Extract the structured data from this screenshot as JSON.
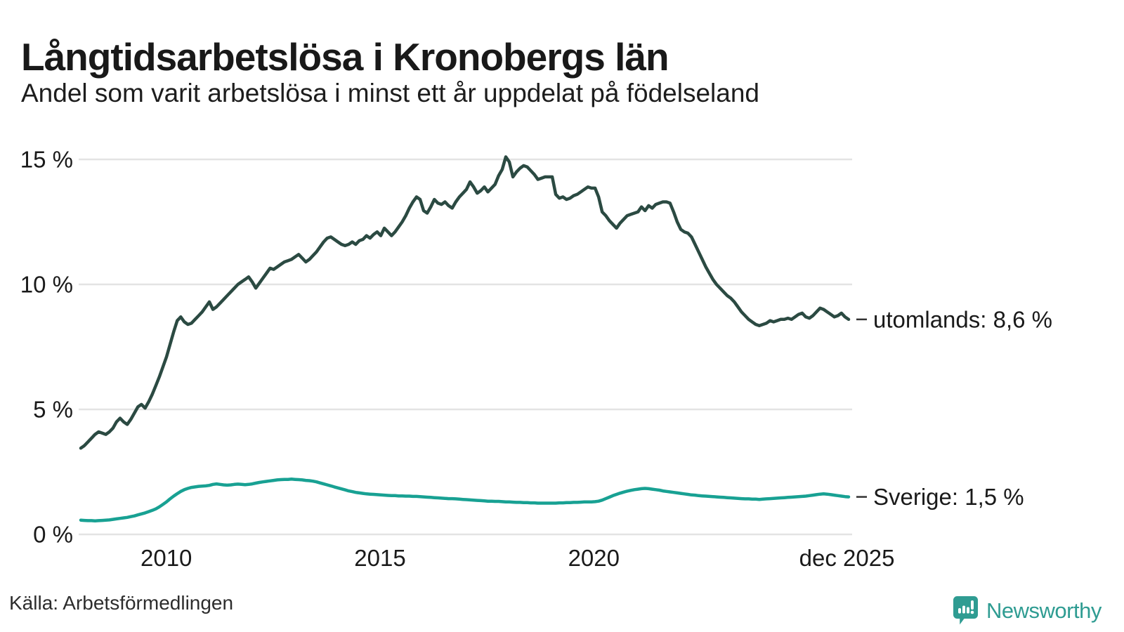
{
  "header": {
    "title": "Långtidsarbetslösa i Kronobergs län",
    "subtitle": "Andel som varit arbetslösa i minst ett år uppdelat på födelseland"
  },
  "chart_data": {
    "type": "line",
    "title": "Långtidsarbetslösa i Kronobergs län",
    "subtitle": "Andel som varit arbetslösa i minst ett år uppdelat på födelseland",
    "x_start": "2008-01",
    "x_end": "2025-12",
    "frequency": "monthly",
    "y_unit": "%",
    "ylim": [
      0,
      16
    ],
    "grid": true,
    "legend_position": "end-of-line",
    "y_ticks": [
      {
        "label": "0 %",
        "value": 0
      },
      {
        "label": "5 %",
        "value": 5
      },
      {
        "label": "10 %",
        "value": 10
      },
      {
        "label": "15 %",
        "value": 15
      }
    ],
    "x_ticks": [
      {
        "label": "2010",
        "year": 2010.0
      },
      {
        "label": "2015",
        "year": 2015.0
      },
      {
        "label": "2020",
        "year": 2020.0
      },
      {
        "label": "dec 2025",
        "year": 2025.92
      }
    ],
    "series": [
      {
        "name": "utomlands",
        "label": "utomlands: 8,6 %",
        "last_value": "8,6 %",
        "color": "#2b4a42",
        "values": [
          3.45,
          3.55,
          3.7,
          3.85,
          4.0,
          4.1,
          4.05,
          4.0,
          4.1,
          4.25,
          4.5,
          4.65,
          4.5,
          4.4,
          4.6,
          4.85,
          5.1,
          5.2,
          5.05,
          5.3,
          5.6,
          5.95,
          6.3,
          6.7,
          7.1,
          7.6,
          8.1,
          8.55,
          8.7,
          8.5,
          8.4,
          8.45,
          8.6,
          8.75,
          8.9,
          9.1,
          9.3,
          9.0,
          9.1,
          9.25,
          9.4,
          9.55,
          9.7,
          9.85,
          10.0,
          10.1,
          10.2,
          10.3,
          10.1,
          9.85,
          10.05,
          10.25,
          10.45,
          10.65,
          10.6,
          10.7,
          10.8,
          10.9,
          10.95,
          11.0,
          11.1,
          11.2,
          11.05,
          10.9,
          11.0,
          11.15,
          11.3,
          11.5,
          11.7,
          11.85,
          11.9,
          11.8,
          11.7,
          11.6,
          11.55,
          11.6,
          11.7,
          11.6,
          11.75,
          11.8,
          11.95,
          11.85,
          12.0,
          12.1,
          11.95,
          12.25,
          12.1,
          11.95,
          12.1,
          12.3,
          12.5,
          12.75,
          13.05,
          13.3,
          13.5,
          13.4,
          12.95,
          12.85,
          13.1,
          13.4,
          13.25,
          13.2,
          13.3,
          13.15,
          13.05,
          13.3,
          13.5,
          13.65,
          13.8,
          14.1,
          13.9,
          13.65,
          13.75,
          13.9,
          13.7,
          13.85,
          14.0,
          14.35,
          14.6,
          15.1,
          14.9,
          14.3,
          14.5,
          14.65,
          14.75,
          14.7,
          14.55,
          14.4,
          14.2,
          14.25,
          14.3,
          14.3,
          14.3,
          13.6,
          13.45,
          13.5,
          13.4,
          13.45,
          13.55,
          13.6,
          13.7,
          13.8,
          13.9,
          13.85,
          13.85,
          13.5,
          12.9,
          12.75,
          12.55,
          12.4,
          12.25,
          12.45,
          12.6,
          12.75,
          12.8,
          12.85,
          12.9,
          13.1,
          12.95,
          13.15,
          13.05,
          13.2,
          13.25,
          13.3,
          13.3,
          13.25,
          12.9,
          12.5,
          12.2,
          12.1,
          12.05,
          11.9,
          11.6,
          11.3,
          11.0,
          10.7,
          10.45,
          10.2,
          10.0,
          9.85,
          9.7,
          9.55,
          9.45,
          9.3,
          9.1,
          8.9,
          8.75,
          8.6,
          8.5,
          8.4,
          8.35,
          8.4,
          8.45,
          8.55,
          8.5,
          8.55,
          8.6,
          8.6,
          8.65,
          8.6,
          8.7,
          8.8,
          8.85,
          8.7,
          8.65,
          8.75,
          8.9,
          9.05,
          9.0,
          8.9,
          8.8,
          8.7,
          8.75,
          8.85,
          8.7,
          8.6
        ]
      },
      {
        "name": "Sverige",
        "label": "Sverige: 1,5 %",
        "last_value": "1,5 %",
        "color": "#18a193",
        "values": [
          0.57,
          0.56,
          0.55,
          0.55,
          0.54,
          0.55,
          0.56,
          0.57,
          0.58,
          0.6,
          0.62,
          0.64,
          0.66,
          0.68,
          0.71,
          0.74,
          0.78,
          0.82,
          0.86,
          0.91,
          0.96,
          1.02,
          1.1,
          1.2,
          1.3,
          1.42,
          1.53,
          1.63,
          1.72,
          1.79,
          1.84,
          1.88,
          1.9,
          1.92,
          1.93,
          1.94,
          1.96,
          2.0,
          2.02,
          2.0,
          1.98,
          1.97,
          1.98,
          2.0,
          2.01,
          2.0,
          1.99,
          2.0,
          2.02,
          2.05,
          2.08,
          2.1,
          2.12,
          2.14,
          2.16,
          2.18,
          2.19,
          2.2,
          2.2,
          2.21,
          2.2,
          2.19,
          2.18,
          2.16,
          2.15,
          2.13,
          2.1,
          2.06,
          2.02,
          1.98,
          1.94,
          1.9,
          1.86,
          1.82,
          1.78,
          1.74,
          1.71,
          1.68,
          1.66,
          1.64,
          1.62,
          1.61,
          1.6,
          1.59,
          1.58,
          1.57,
          1.56,
          1.55,
          1.55,
          1.54,
          1.54,
          1.53,
          1.53,
          1.52,
          1.52,
          1.51,
          1.5,
          1.49,
          1.48,
          1.47,
          1.46,
          1.45,
          1.44,
          1.43,
          1.43,
          1.42,
          1.41,
          1.4,
          1.39,
          1.38,
          1.37,
          1.36,
          1.35,
          1.34,
          1.33,
          1.33,
          1.32,
          1.32,
          1.31,
          1.3,
          1.3,
          1.29,
          1.28,
          1.28,
          1.27,
          1.27,
          1.26,
          1.26,
          1.25,
          1.25,
          1.25,
          1.25,
          1.25,
          1.25,
          1.26,
          1.26,
          1.27,
          1.27,
          1.28,
          1.28,
          1.29,
          1.3,
          1.3,
          1.3,
          1.31,
          1.33,
          1.37,
          1.43,
          1.49,
          1.55,
          1.6,
          1.65,
          1.69,
          1.73,
          1.76,
          1.79,
          1.81,
          1.83,
          1.84,
          1.83,
          1.81,
          1.79,
          1.77,
          1.74,
          1.72,
          1.7,
          1.68,
          1.66,
          1.64,
          1.62,
          1.6,
          1.58,
          1.57,
          1.55,
          1.54,
          1.53,
          1.52,
          1.51,
          1.5,
          1.49,
          1.48,
          1.47,
          1.46,
          1.45,
          1.44,
          1.43,
          1.42,
          1.42,
          1.41,
          1.41,
          1.4,
          1.41,
          1.42,
          1.43,
          1.44,
          1.45,
          1.46,
          1.47,
          1.48,
          1.49,
          1.5,
          1.51,
          1.52,
          1.53,
          1.55,
          1.57,
          1.59,
          1.61,
          1.62,
          1.61,
          1.59,
          1.57,
          1.55,
          1.53,
          1.51,
          1.5
        ]
      }
    ]
  },
  "colors": {
    "background": "#ffffff",
    "gridline": "#e3e3e3",
    "axis_text": "#1a1a1a",
    "series_utomlands": "#2b4a42",
    "series_sverige": "#18a193",
    "label_dash": "#333333",
    "brand_teal": "#2f9c92"
  },
  "footer": {
    "source": "Källa: Arbetsförmedlingen",
    "brand": "Newsworthy"
  }
}
